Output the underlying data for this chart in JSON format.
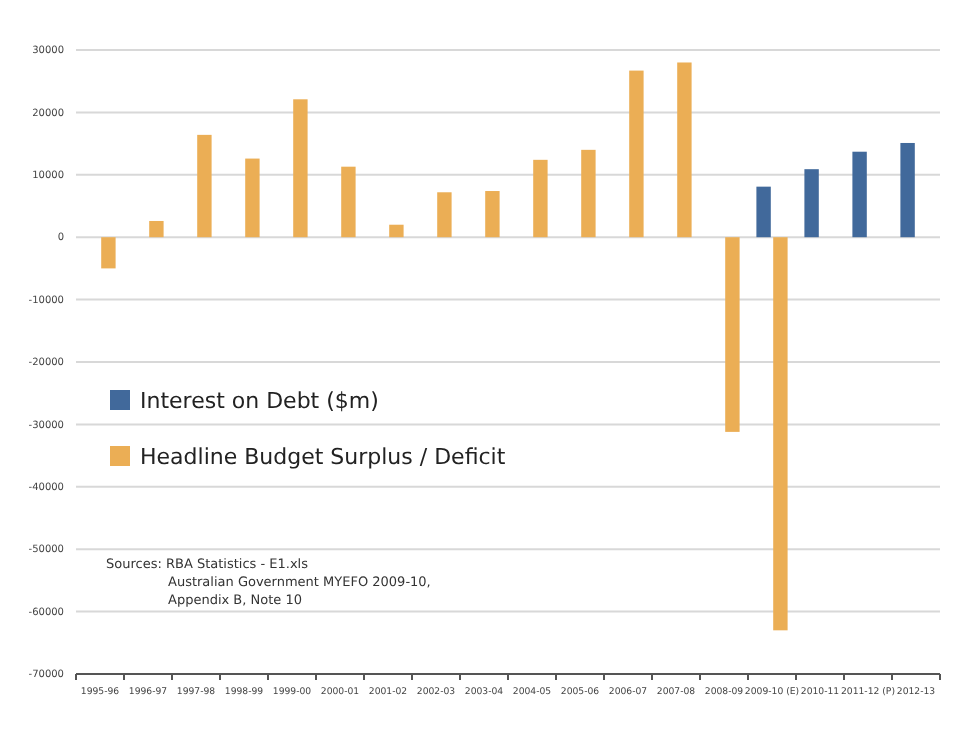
{
  "chart_data": {
    "type": "bar",
    "categories": [
      "1995-96",
      "1996-97",
      "1997-98",
      "1998-99",
      "1999-00",
      "2000-01",
      "2001-02",
      "2002-03",
      "2003-04",
      "2004-05",
      "2005-06",
      "2006-07",
      "2007-08",
      "2008-09",
      "2009-10 (E)",
      "2010-11",
      "2011-12 (P)",
      "2012-13"
    ],
    "series": [
      {
        "name": "Interest on Debt ($m)",
        "color": "#41699b",
        "values": [
          null,
          null,
          null,
          null,
          null,
          null,
          null,
          null,
          null,
          null,
          null,
          null,
          null,
          null,
          8100,
          10900,
          13700,
          15100
        ]
      },
      {
        "name": "Headline Budget Surplus / Deficit",
        "color": "#ebae55",
        "values": [
          -5000,
          2600,
          16400,
          12600,
          22100,
          11300,
          2000,
          7200,
          7400,
          12400,
          14000,
          26700,
          28000,
          -31200,
          -63000,
          null,
          null,
          null
        ]
      }
    ],
    "ylim": [
      -70000,
      30000
    ],
    "yticks": [
      -70000,
      -60000,
      -50000,
      -40000,
      -30000,
      -20000,
      -10000,
      0,
      10000,
      20000,
      30000
    ],
    "grid": "y",
    "legend": "left",
    "annotations": [
      "Sources: RBA Statistics - E1.xls",
      "Australian Government MYEFO 2009-10,",
      "Appendix B, Note 10"
    ]
  }
}
